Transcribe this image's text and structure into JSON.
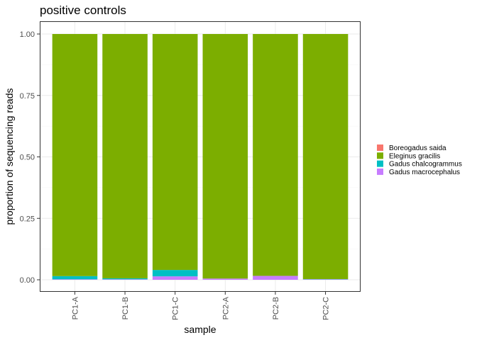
{
  "chart_data": {
    "type": "bar",
    "stacked": true,
    "title": "positive controls",
    "xlabel": "sample",
    "ylabel": "proportion of sequencing reads",
    "ylim": [
      0,
      1
    ],
    "yticks": [
      0,
      0.25,
      0.5,
      0.75,
      1
    ],
    "ytick_labels": [
      "0.00",
      "0.25",
      "0.50",
      "0.75",
      "1.00"
    ],
    "categories": [
      "PC1-A",
      "PC1-B",
      "PC1-C",
      "PC2-A",
      "PC2-B",
      "PC2-C"
    ],
    "stack_order_bottom_to_top": [
      "Gadus macrocephalus",
      "Gadus chalcogrammus",
      "Boreogadus saida",
      "Eleginus gracilis"
    ],
    "series": [
      {
        "name": "Boreogadus saida",
        "color": "#F8766D",
        "values": [
          0.0,
          0.0,
          0.0,
          0.0,
          0.0,
          0.0
        ]
      },
      {
        "name": "Eleginus gracilis",
        "color": "#7CAE00",
        "values": [
          0.985,
          0.994,
          0.96,
          0.995,
          0.984,
          0.997
        ]
      },
      {
        "name": "Gadus chalcogrammus",
        "color": "#00BFC4",
        "values": [
          0.013,
          0.004,
          0.026,
          0.0,
          0.0,
          0.001
        ]
      },
      {
        "name": "Gadus macrocephalus",
        "color": "#C77CFF",
        "values": [
          0.002,
          0.002,
          0.014,
          0.005,
          0.016,
          0.002
        ]
      }
    ],
    "grid": true,
    "legend_position": "right"
  }
}
